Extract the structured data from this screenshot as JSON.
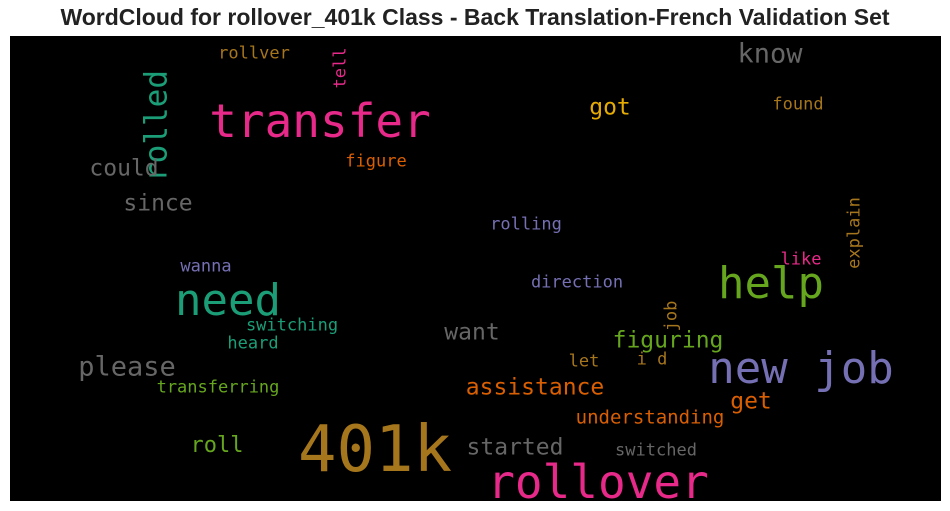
{
  "chart_data": {
    "type": "wordcloud",
    "title": "WordCloud for rollover_401k Class - Back Translation-French Validation Set",
    "background": "#000000",
    "words": [
      {
        "text": "401k",
        "weight": 1.0,
        "color": "#a6761d",
        "rotate": false
      },
      {
        "text": "transfer",
        "weight": 0.72,
        "color": "#e7298a",
        "rotate": false
      },
      {
        "text": "rollover",
        "weight": 0.72,
        "color": "#e7298a",
        "rotate": false
      },
      {
        "text": "need",
        "weight": 0.68,
        "color": "#1b9e77",
        "rotate": false
      },
      {
        "text": "help",
        "weight": 0.68,
        "color": "#66a61e",
        "rotate": false
      },
      {
        "text": "new job",
        "weight": 0.68,
        "color": "#7570b3",
        "rotate": false
      },
      {
        "text": "rolled",
        "weight": 0.48,
        "color": "#1b9e77",
        "rotate": true
      },
      {
        "text": "know",
        "weight": 0.42,
        "color": "#666666",
        "rotate": false
      },
      {
        "text": "please",
        "weight": 0.42,
        "color": "#666666",
        "rotate": false
      },
      {
        "text": "could",
        "weight": 0.36,
        "color": "#666666",
        "rotate": false
      },
      {
        "text": "since",
        "weight": 0.36,
        "color": "#666666",
        "rotate": false
      },
      {
        "text": "got",
        "weight": 0.36,
        "color": "#e6ab02",
        "rotate": false
      },
      {
        "text": "want",
        "weight": 0.36,
        "color": "#666666",
        "rotate": false
      },
      {
        "text": "figuring",
        "weight": 0.36,
        "color": "#66a61e",
        "rotate": false
      },
      {
        "text": "assistance",
        "weight": 0.36,
        "color": "#d95f02",
        "rotate": false
      },
      {
        "text": "get",
        "weight": 0.36,
        "color": "#d95f02",
        "rotate": false
      },
      {
        "text": "started",
        "weight": 0.36,
        "color": "#666666",
        "rotate": false
      },
      {
        "text": "roll",
        "weight": 0.34,
        "color": "#66a61e",
        "rotate": false
      },
      {
        "text": "understanding",
        "weight": 0.3,
        "color": "#d95f02",
        "rotate": false
      },
      {
        "text": "rollver",
        "weight": 0.26,
        "color": "#a6761d",
        "rotate": false
      },
      {
        "text": "tell",
        "weight": 0.26,
        "color": "#e7298a",
        "rotate": true
      },
      {
        "text": "found",
        "weight": 0.26,
        "color": "#a6761d",
        "rotate": false
      },
      {
        "text": "figure",
        "weight": 0.26,
        "color": "#d95f02",
        "rotate": false
      },
      {
        "text": "rolling",
        "weight": 0.26,
        "color": "#7570b3",
        "rotate": false
      },
      {
        "text": "explain",
        "weight": 0.26,
        "color": "#a6761d",
        "rotate": true
      },
      {
        "text": "like",
        "weight": 0.26,
        "color": "#e7298a",
        "rotate": false
      },
      {
        "text": "wanna",
        "weight": 0.26,
        "color": "#7570b3",
        "rotate": false
      },
      {
        "text": "direction",
        "weight": 0.26,
        "color": "#7570b3",
        "rotate": false
      },
      {
        "text": "switching",
        "weight": 0.26,
        "color": "#1b9e77",
        "rotate": false
      },
      {
        "text": "heard",
        "weight": 0.26,
        "color": "#1b9e77",
        "rotate": false
      },
      {
        "text": "job",
        "weight": 0.26,
        "color": "#a6761d",
        "rotate": true
      },
      {
        "text": "let",
        "weight": 0.26,
        "color": "#a6761d",
        "rotate": false
      },
      {
        "text": "i d",
        "weight": 0.26,
        "color": "#a6761d",
        "rotate": false
      },
      {
        "text": "transferring",
        "weight": 0.26,
        "color": "#66a61e",
        "rotate": false
      },
      {
        "text": "switched",
        "weight": 0.26,
        "color": "#666666",
        "rotate": false
      }
    ]
  }
}
